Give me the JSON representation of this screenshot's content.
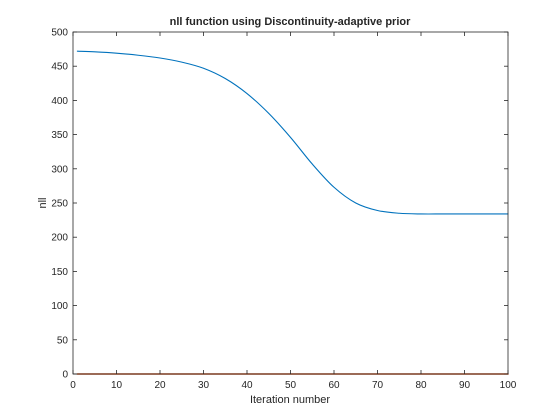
{
  "chart_data": {
    "type": "line",
    "title": "nll function using Discontinuity-adaptive prior",
    "xlabel": "Iteration number",
    "ylabel": "nll",
    "xlim": [
      0,
      100
    ],
    "ylim": [
      0,
      500
    ],
    "xticks": [
      0,
      10,
      20,
      30,
      40,
      50,
      60,
      70,
      80,
      90,
      100
    ],
    "yticks": [
      0,
      50,
      100,
      150,
      200,
      250,
      300,
      350,
      400,
      450,
      500
    ],
    "grid": false,
    "series": [
      {
        "color": "#0072bd",
        "x": [
          1,
          5,
          10,
          15,
          20,
          25,
          30,
          35,
          40,
          45,
          50,
          55,
          60,
          65,
          70,
          75,
          80,
          85,
          90,
          95,
          100
        ],
        "y": [
          472,
          471,
          469,
          466,
          462,
          456,
          447,
          432,
          410,
          381,
          346,
          307,
          273,
          250,
          239,
          235,
          234,
          234,
          234,
          234,
          234
        ]
      },
      {
        "color": "#d95319",
        "x": [
          1,
          100
        ],
        "y": [
          0,
          0
        ]
      }
    ]
  }
}
